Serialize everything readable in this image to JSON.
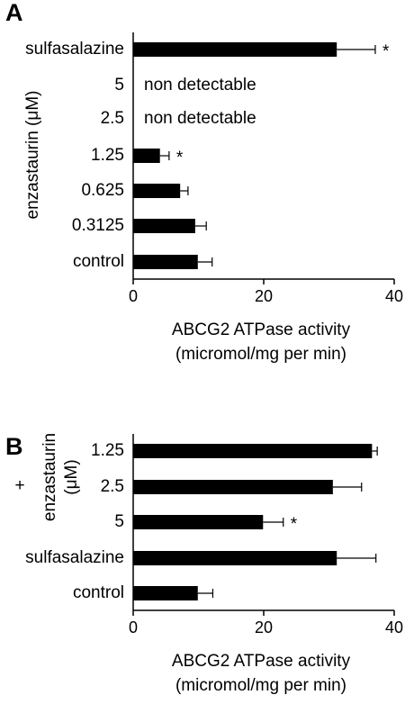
{
  "chart_data": [
    {
      "type": "hbar",
      "panel": "A",
      "categories": [
        "sulfasalazine",
        "5",
        "2.5",
        "1.25",
        "0.625",
        "0.3125",
        "control"
      ],
      "values": [
        31.2,
        null,
        null,
        4.1,
        7.2,
        9.5,
        9.9
      ],
      "errors": [
        5.9,
        null,
        null,
        1.4,
        1.2,
        1.7,
        2.2
      ],
      "annotations": [
        "*",
        "non detectable",
        "non detectable",
        "*",
        null,
        null,
        null
      ],
      "color": "#000000",
      "y_label": [
        "enzastaurin (μM)"
      ],
      "x_label": [
        "ABCG2 ATPase activity",
        "(micromol/mg per min)"
      ],
      "xlim": [
        0,
        40
      ],
      "xticks": [
        0,
        20,
        40
      ]
    },
    {
      "type": "hbar",
      "panel": "B",
      "categories": [
        "1.25",
        "2.5",
        "5",
        "sulfasalazine",
        "control"
      ],
      "values": [
        36.6,
        30.6,
        19.9,
        31.2,
        9.9
      ],
      "errors": [
        0.8,
        4.4,
        3.1,
        6.0,
        2.3
      ],
      "annotations": [
        null,
        null,
        "*",
        null,
        null
      ],
      "color": "#000000",
      "y_label_prefix": "+",
      "y_label": [
        "enzastaurin",
        "(μM)"
      ],
      "x_label": [
        "ABCG2 ATPase activity",
        "(micromol/mg per min)"
      ],
      "xlim": [
        0,
        40
      ],
      "xticks": [
        0,
        20,
        40
      ]
    }
  ]
}
